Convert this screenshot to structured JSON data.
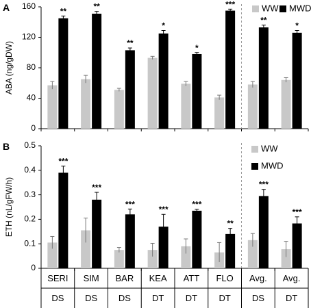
{
  "chart_data": [
    {
      "type": "bar",
      "panel_label": "A",
      "ylabel": "ABA (ng/gDW)",
      "ylim": [
        0,
        160
      ],
      "yticks": [
        "0",
        "40",
        "80",
        "120",
        "160"
      ],
      "categories": [
        "SERI",
        "SIM",
        "BAR",
        "KEA",
        "ATT",
        "FLO",
        "Avg.",
        "Avg."
      ],
      "groups": [
        "DS",
        "DS",
        "DS",
        "DT",
        "DT",
        "DT",
        "DS",
        "DT"
      ],
      "series": [
        {
          "name": "WW",
          "color": "#c8c8c8",
          "values": [
            57,
            65,
            51,
            93,
            59,
            41,
            58,
            64
          ],
          "errors": [
            5,
            5,
            2,
            2,
            3,
            3,
            4,
            3
          ]
        },
        {
          "name": "MWD",
          "color": "#000000",
          "values": [
            145,
            151,
            103,
            125,
            98,
            155,
            133,
            126
          ],
          "errors": [
            3,
            3,
            3,
            4,
            2,
            2,
            3,
            3
          ]
        }
      ],
      "significance": [
        "**",
        "**",
        "**",
        "*",
        "*",
        "***",
        "**",
        "*"
      ],
      "legend_position": "top-right",
      "separator_after_index": 5
    },
    {
      "type": "bar",
      "panel_label": "B",
      "ylabel": "ETH (nL/gFW/h)",
      "ylim": [
        0,
        0.5
      ],
      "yticks": [
        "0",
        "0.1",
        "0.2",
        "0.3",
        "0.4",
        "0.5"
      ],
      "categories": [
        "SERI",
        "SIM",
        "BAR",
        "KEA",
        "ATT",
        "FLO",
        "Avg.",
        "Avg."
      ],
      "groups": [
        "DS",
        "DS",
        "DS",
        "DT",
        "DT",
        "DT",
        "DS",
        "DT"
      ],
      "series": [
        {
          "name": "WW",
          "color": "#c8c8c8",
          "values": [
            0.105,
            0.155,
            0.075,
            0.075,
            0.09,
            0.065,
            0.115,
            0.078
          ],
          "errors": [
            0.025,
            0.05,
            0.01,
            0.027,
            0.03,
            0.04,
            0.027,
            0.032
          ]
        },
        {
          "name": "MWD",
          "color": "#000000",
          "values": [
            0.39,
            0.28,
            0.22,
            0.17,
            0.235,
            0.14,
            0.295,
            0.183
          ],
          "errors": [
            0.027,
            0.03,
            0.022,
            0.05,
            0.006,
            0.023,
            0.027,
            0.027
          ]
        }
      ],
      "significance": [
        "***",
        "***",
        "***",
        "***",
        "***",
        "**",
        "***",
        "***"
      ],
      "legend_position": "top-right",
      "separator_after_index": 5
    }
  ]
}
